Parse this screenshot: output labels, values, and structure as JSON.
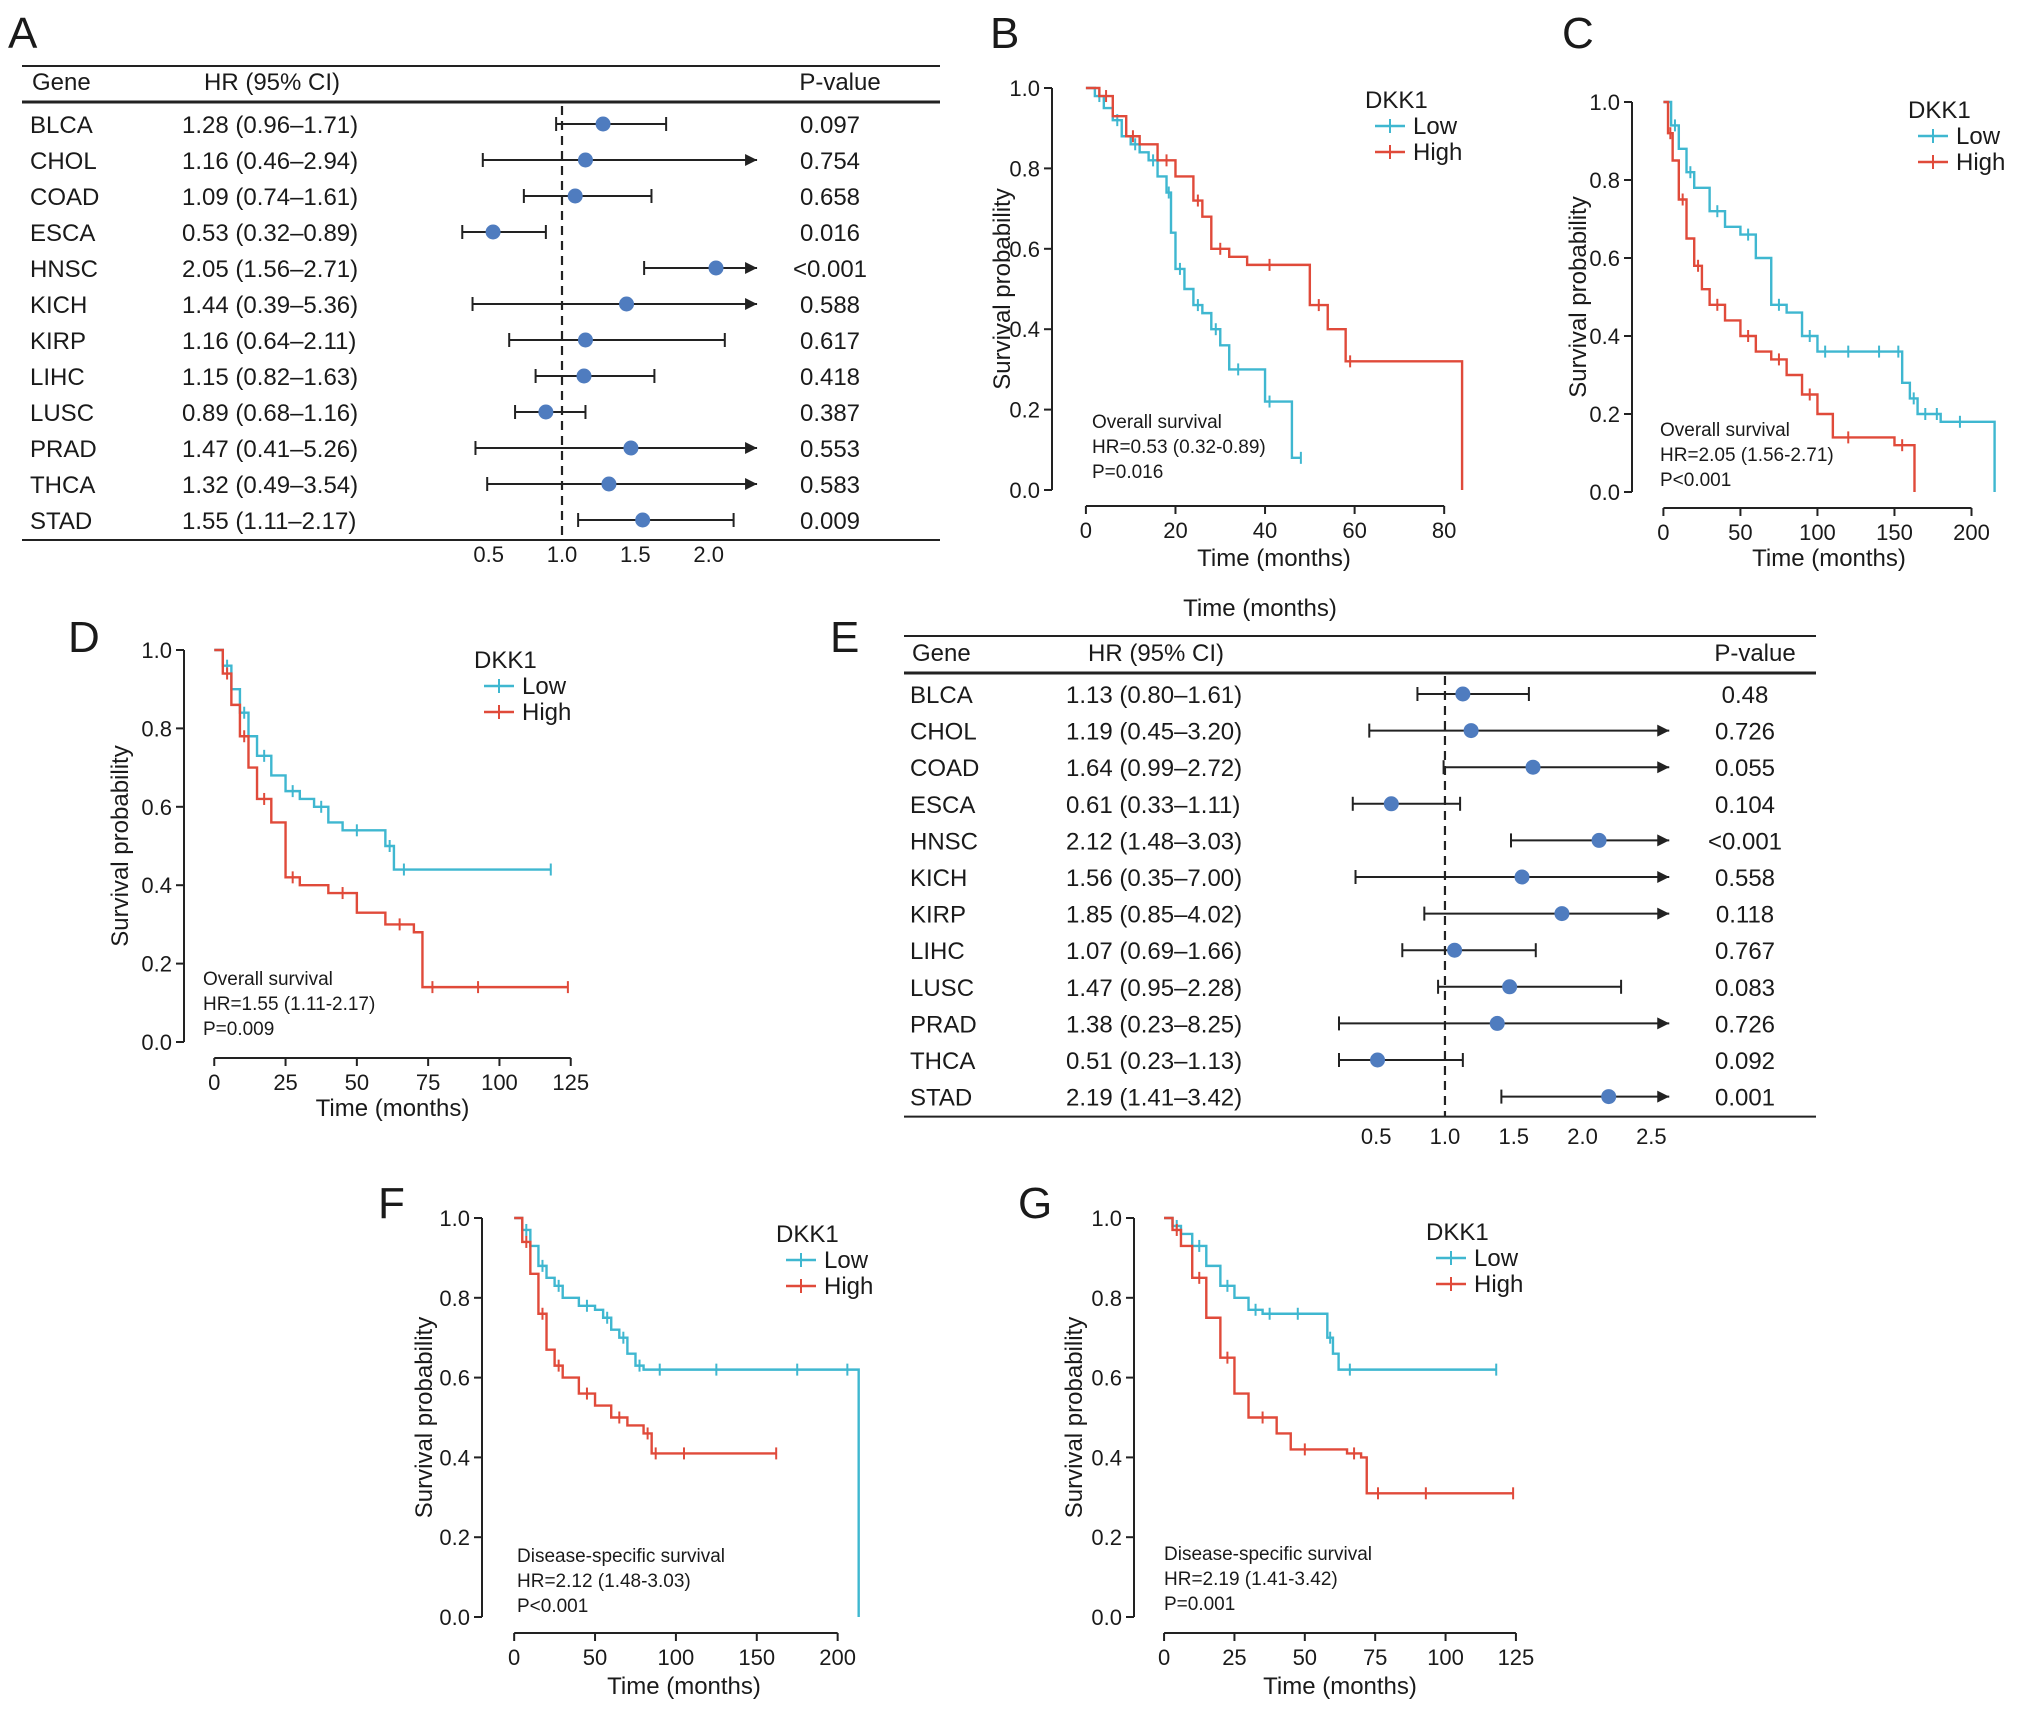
{
  "chart_data": [
    {
      "id": "A",
      "type": "forest",
      "panel_label": "A",
      "headers": {
        "gene": "Gene",
        "hr": "HR (95% CI)",
        "p": "P-value"
      },
      "xticks": [
        "0.5",
        "1.0",
        "1.5",
        "2.0"
      ],
      "xlim": [
        0.25,
        2.35
      ],
      "ref_line": 1.0,
      "rows": [
        {
          "gene": "BLCA",
          "hr_text": "1.28 (0.96–1.71)",
          "p": "0.097",
          "hr": 1.28,
          "lo": 0.96,
          "hi": 1.71,
          "arrow": false
        },
        {
          "gene": "CHOL",
          "hr_text": "1.16 (0.46–2.94)",
          "p": "0.754",
          "hr": 1.16,
          "lo": 0.46,
          "hi": 2.94,
          "arrow": true
        },
        {
          "gene": "COAD",
          "hr_text": "1.09 (0.74–1.61)",
          "p": "0.658",
          "hr": 1.09,
          "lo": 0.74,
          "hi": 1.61,
          "arrow": false
        },
        {
          "gene": "ESCA",
          "hr_text": "0.53 (0.32–0.89)",
          "p": "0.016",
          "hr": 0.53,
          "lo": 0.32,
          "hi": 0.89,
          "arrow": false
        },
        {
          "gene": "HNSC",
          "hr_text": "2.05 (1.56–2.71)",
          "p": "<0.001",
          "hr": 2.05,
          "lo": 1.56,
          "hi": 2.71,
          "arrow": true
        },
        {
          "gene": "KICH",
          "hr_text": "1.44 (0.39–5.36)",
          "p": "0.588",
          "hr": 1.44,
          "lo": 0.39,
          "hi": 5.36,
          "arrow": true
        },
        {
          "gene": "KIRP",
          "hr_text": "1.16 (0.64–2.11)",
          "p": "0.617",
          "hr": 1.16,
          "lo": 0.64,
          "hi": 2.11,
          "arrow": false
        },
        {
          "gene": "LIHC",
          "hr_text": "1.15 (0.82–1.63)",
          "p": "0.418",
          "hr": 1.15,
          "lo": 0.82,
          "hi": 1.63,
          "arrow": false
        },
        {
          "gene": "LUSC",
          "hr_text": "0.89 (0.68–1.16)",
          "p": "0.387",
          "hr": 0.89,
          "lo": 0.68,
          "hi": 1.16,
          "arrow": false
        },
        {
          "gene": "PRAD",
          "hr_text": "1.47 (0.41–5.26)",
          "p": "0.553",
          "hr": 1.47,
          "lo": 0.41,
          "hi": 5.26,
          "arrow": true
        },
        {
          "gene": "THCA",
          "hr_text": "1.32 (0.49–3.54)",
          "p": "0.583",
          "hr": 1.32,
          "lo": 0.49,
          "hi": 3.54,
          "arrow": true
        },
        {
          "gene": "STAD",
          "hr_text": "1.55 (1.11–2.17)",
          "p": "0.009",
          "hr": 1.55,
          "lo": 1.11,
          "hi": 2.17,
          "arrow": false
        }
      ]
    },
    {
      "id": "B",
      "type": "line",
      "subtype": "kaplan-meier",
      "panel_label": "B",
      "xlabel": "Time (months)",
      "ylabel": "Survival probability",
      "xlim": [
        -4,
        88
      ],
      "ylim": [
        0,
        1.0
      ],
      "xticks": [
        "0",
        "20",
        "40",
        "60",
        "80"
      ],
      "yticks": [
        "0.0",
        "0.2",
        "0.4",
        "0.6",
        "0.8",
        "1.0"
      ],
      "legend": {
        "title": "DKK1",
        "items": [
          "Low",
          "High"
        ]
      },
      "annotation": [
        "Overall survival",
        "HR=0.53 (0.32-0.89)",
        "P=0.016"
      ],
      "series": [
        {
          "name": "Low",
          "color": "#3fb7d0",
          "x": [
            0,
            2,
            4,
            6,
            8,
            10,
            12,
            14,
            16,
            18,
            19,
            20,
            22,
            24,
            26,
            28,
            30,
            32,
            36,
            40,
            42,
            46,
            48
          ],
          "y": [
            1.0,
            0.98,
            0.95,
            0.92,
            0.88,
            0.86,
            0.84,
            0.82,
            0.78,
            0.74,
            0.64,
            0.55,
            0.5,
            0.46,
            0.44,
            0.4,
            0.36,
            0.3,
            0.3,
            0.22,
            0.22,
            0.08,
            0.08
          ]
        },
        {
          "name": "High",
          "color": "#e04a3a",
          "x": [
            0,
            3,
            6,
            9,
            12,
            16,
            20,
            24,
            26,
            28,
            32,
            36,
            46,
            50,
            54,
            58,
            60,
            84
          ],
          "y": [
            1.0,
            0.98,
            0.93,
            0.88,
            0.86,
            0.82,
            0.78,
            0.72,
            0.68,
            0.6,
            0.58,
            0.56,
            0.56,
            0.46,
            0.4,
            0.32,
            0.32,
            0.0
          ]
        }
      ]
    },
    {
      "id": "C",
      "type": "line",
      "subtype": "kaplan-meier",
      "panel_label": "C",
      "xlabel": "Time (months)",
      "ylabel": "Survival probability",
      "xlim": [
        -10,
        225
      ],
      "ylim": [
        0,
        1.0
      ],
      "xticks": [
        "0",
        "50",
        "100",
        "150",
        "200"
      ],
      "yticks": [
        "0.0",
        "0.2",
        "0.4",
        "0.6",
        "0.8",
        "1.0"
      ],
      "legend": {
        "title": "DKK1",
        "items": [
          "Low",
          "High"
        ]
      },
      "annotation": [
        "Overall survival",
        "HR=2.05 (1.56-2.71)",
        "P<0.001"
      ],
      "series": [
        {
          "name": "Low",
          "color": "#3fb7d0",
          "x": [
            0,
            5,
            10,
            15,
            20,
            30,
            40,
            50,
            60,
            70,
            80,
            90,
            100,
            110,
            130,
            150,
            155,
            160,
            165,
            175,
            180,
            205,
            215
          ],
          "y": [
            1.0,
            0.94,
            0.88,
            0.82,
            0.78,
            0.72,
            0.68,
            0.66,
            0.6,
            0.48,
            0.46,
            0.4,
            0.36,
            0.36,
            0.36,
            0.36,
            0.28,
            0.24,
            0.2,
            0.2,
            0.18,
            0.18,
            0.0
          ]
        },
        {
          "name": "High",
          "color": "#e04a3a",
          "x": [
            0,
            3,
            6,
            10,
            15,
            20,
            25,
            30,
            40,
            50,
            60,
            70,
            80,
            90,
            100,
            110,
            130,
            150,
            160,
            163
          ],
          "y": [
            1.0,
            0.92,
            0.85,
            0.75,
            0.65,
            0.58,
            0.52,
            0.48,
            0.44,
            0.4,
            0.36,
            0.34,
            0.3,
            0.25,
            0.2,
            0.14,
            0.14,
            0.12,
            0.12,
            0.0
          ]
        }
      ]
    },
    {
      "id": "D",
      "type": "line",
      "subtype": "kaplan-meier",
      "panel_label": "D",
      "xlabel": "Time (months)",
      "ylabel": "Survival probability",
      "xlim": [
        -5,
        130
      ],
      "ylim": [
        0,
        1.0
      ],
      "xticks": [
        "0",
        "25",
        "50",
        "75",
        "100",
        "125"
      ],
      "yticks": [
        "0.0",
        "0.2",
        "0.4",
        "0.6",
        "0.8",
        "1.0"
      ],
      "legend": {
        "title": "DKK1",
        "items": [
          "Low",
          "High"
        ]
      },
      "annotation": [
        "Overall survival",
        "HR=1.55 (1.11-2.17)",
        "P=0.009"
      ],
      "series": [
        {
          "name": "Low",
          "color": "#3fb7d0",
          "x": [
            0,
            3,
            6,
            9,
            12,
            15,
            20,
            25,
            30,
            35,
            40,
            45,
            55,
            60,
            63,
            70,
            118
          ],
          "y": [
            1.0,
            0.96,
            0.9,
            0.84,
            0.78,
            0.73,
            0.68,
            0.64,
            0.62,
            0.6,
            0.56,
            0.54,
            0.54,
            0.5,
            0.44,
            0.44,
            0.44
          ]
        },
        {
          "name": "High",
          "color": "#e04a3a",
          "x": [
            0,
            3,
            6,
            9,
            12,
            15,
            20,
            25,
            30,
            40,
            50,
            60,
            70,
            73,
            80,
            105,
            124
          ],
          "y": [
            1.0,
            0.94,
            0.86,
            0.78,
            0.7,
            0.62,
            0.56,
            0.42,
            0.4,
            0.38,
            0.33,
            0.3,
            0.28,
            0.14,
            0.14,
            0.14,
            0.14
          ]
        }
      ]
    },
    {
      "id": "E",
      "type": "forest",
      "panel_label": "E",
      "top_label": "Time (months)",
      "headers": {
        "gene": "Gene",
        "hr": "HR (95% CI)",
        "p": "P-value"
      },
      "xticks": [
        "0.5",
        "1.0",
        "1.5",
        "2.0",
        "2.5"
      ],
      "xlim": [
        0.15,
        2.65
      ],
      "ref_line": 1.0,
      "rows": [
        {
          "gene": "BLCA",
          "hr_text": "1.13 (0.80–1.61)",
          "p": "0.48",
          "hr": 1.13,
          "lo": 0.8,
          "hi": 1.61,
          "arrow": false
        },
        {
          "gene": "CHOL",
          "hr_text": "1.19 (0.45–3.20)",
          "p": "0.726",
          "hr": 1.19,
          "lo": 0.45,
          "hi": 3.2,
          "arrow": true
        },
        {
          "gene": "COAD",
          "hr_text": "1.64 (0.99–2.72)",
          "p": "0.055",
          "hr": 1.64,
          "lo": 0.99,
          "hi": 2.72,
          "arrow": true
        },
        {
          "gene": "ESCA",
          "hr_text": "0.61 (0.33–1.11)",
          "p": "0.104",
          "hr": 0.61,
          "lo": 0.33,
          "hi": 1.11,
          "arrow": false
        },
        {
          "gene": "HNSC",
          "hr_text": "2.12 (1.48–3.03)",
          "p": "<0.001",
          "hr": 2.12,
          "lo": 1.48,
          "hi": 3.03,
          "arrow": true
        },
        {
          "gene": "KICH",
          "hr_text": "1.56 (0.35–7.00)",
          "p": "0.558",
          "hr": 1.56,
          "lo": 0.35,
          "hi": 7.0,
          "arrow": true
        },
        {
          "gene": "KIRP",
          "hr_text": "1.85 (0.85–4.02)",
          "p": "0.118",
          "hr": 1.85,
          "lo": 0.85,
          "hi": 4.02,
          "arrow": true
        },
        {
          "gene": "LIHC",
          "hr_text": "1.07 (0.69–1.66)",
          "p": "0.767",
          "hr": 1.07,
          "lo": 0.69,
          "hi": 1.66,
          "arrow": false
        },
        {
          "gene": "LUSC",
          "hr_text": "1.47 (0.95–2.28)",
          "p": "0.083",
          "hr": 1.47,
          "lo": 0.95,
          "hi": 2.28,
          "arrow": false
        },
        {
          "gene": "PRAD",
          "hr_text": "1.38 (0.23–8.25)",
          "p": "0.726",
          "hr": 1.38,
          "lo": 0.23,
          "hi": 8.25,
          "arrow": true
        },
        {
          "gene": "THCA",
          "hr_text": "0.51 (0.23–1.13)",
          "p": "0.092",
          "hr": 0.51,
          "lo": 0.23,
          "hi": 1.13,
          "arrow": false
        },
        {
          "gene": "STAD",
          "hr_text": "2.19 (1.41–3.42)",
          "p": "0.001",
          "hr": 2.19,
          "lo": 1.41,
          "hi": 3.42,
          "arrow": true
        }
      ]
    },
    {
      "id": "F",
      "type": "line",
      "subtype": "kaplan-meier",
      "panel_label": "F",
      "xlabel": "Time (months)",
      "ylabel": "Survival probability",
      "xlim": [
        -10,
        220
      ],
      "ylim": [
        0,
        1.0
      ],
      "xticks": [
        "0",
        "50",
        "100",
        "150",
        "200"
      ],
      "yticks": [
        "0.0",
        "0.2",
        "0.4",
        "0.6",
        "0.8",
        "1.0"
      ],
      "legend": {
        "title": "DKK1",
        "items": [
          "Low",
          "High"
        ]
      },
      "annotation": [
        "Disease-specific survival",
        "HR=2.12 (1.48-3.03)",
        "P<0.001"
      ],
      "series": [
        {
          "name": "Low",
          "color": "#3fb7d0",
          "x": [
            0,
            5,
            10,
            15,
            20,
            25,
            30,
            40,
            50,
            55,
            60,
            65,
            70,
            75,
            80,
            100,
            150,
            200,
            212,
            213
          ],
          "y": [
            1.0,
            0.97,
            0.93,
            0.88,
            0.85,
            0.83,
            0.8,
            0.78,
            0.77,
            0.75,
            0.72,
            0.7,
            0.66,
            0.63,
            0.62,
            0.62,
            0.62,
            0.62,
            0.62,
            0.0
          ]
        },
        {
          "name": "High",
          "color": "#e04a3a",
          "x": [
            0,
            5,
            10,
            15,
            20,
            25,
            30,
            40,
            50,
            60,
            70,
            80,
            85,
            90,
            120,
            162
          ],
          "y": [
            1.0,
            0.94,
            0.86,
            0.76,
            0.67,
            0.63,
            0.6,
            0.56,
            0.53,
            0.5,
            0.48,
            0.46,
            0.41,
            0.41,
            0.41,
            0.41
          ]
        }
      ]
    },
    {
      "id": "G",
      "type": "line",
      "subtype": "kaplan-meier",
      "panel_label": "G",
      "xlabel": "Time (months)",
      "ylabel": "Survival probability",
      "xlim": [
        -5,
        130
      ],
      "ylim": [
        0,
        1.0
      ],
      "xticks": [
        "0",
        "25",
        "50",
        "75",
        "100",
        "125"
      ],
      "yticks": [
        "0.0",
        "0.2",
        "0.4",
        "0.6",
        "0.8",
        "1.0"
      ],
      "legend": {
        "title": "DKK1",
        "items": [
          "Low",
          "High"
        ]
      },
      "annotation": [
        "Disease-specific survival",
        "HR=2.19 (1.41-3.42)",
        "P=0.001"
      ],
      "series": [
        {
          "name": "Low",
          "color": "#3fb7d0",
          "x": [
            0,
            3,
            6,
            10,
            15,
            20,
            25,
            30,
            35,
            40,
            55,
            58,
            60,
            62,
            70,
            118
          ],
          "y": [
            1.0,
            0.98,
            0.96,
            0.93,
            0.88,
            0.83,
            0.8,
            0.77,
            0.76,
            0.76,
            0.76,
            0.7,
            0.66,
            0.62,
            0.62,
            0.62
          ]
        },
        {
          "name": "High",
          "color": "#e04a3a",
          "x": [
            0,
            3,
            6,
            10,
            15,
            20,
            25,
            30,
            40,
            45,
            55,
            65,
            70,
            72,
            80,
            106,
            124
          ],
          "y": [
            1.0,
            0.97,
            0.93,
            0.85,
            0.75,
            0.65,
            0.56,
            0.5,
            0.46,
            0.42,
            0.42,
            0.41,
            0.4,
            0.31,
            0.31,
            0.31,
            0.31
          ]
        }
      ]
    }
  ]
}
